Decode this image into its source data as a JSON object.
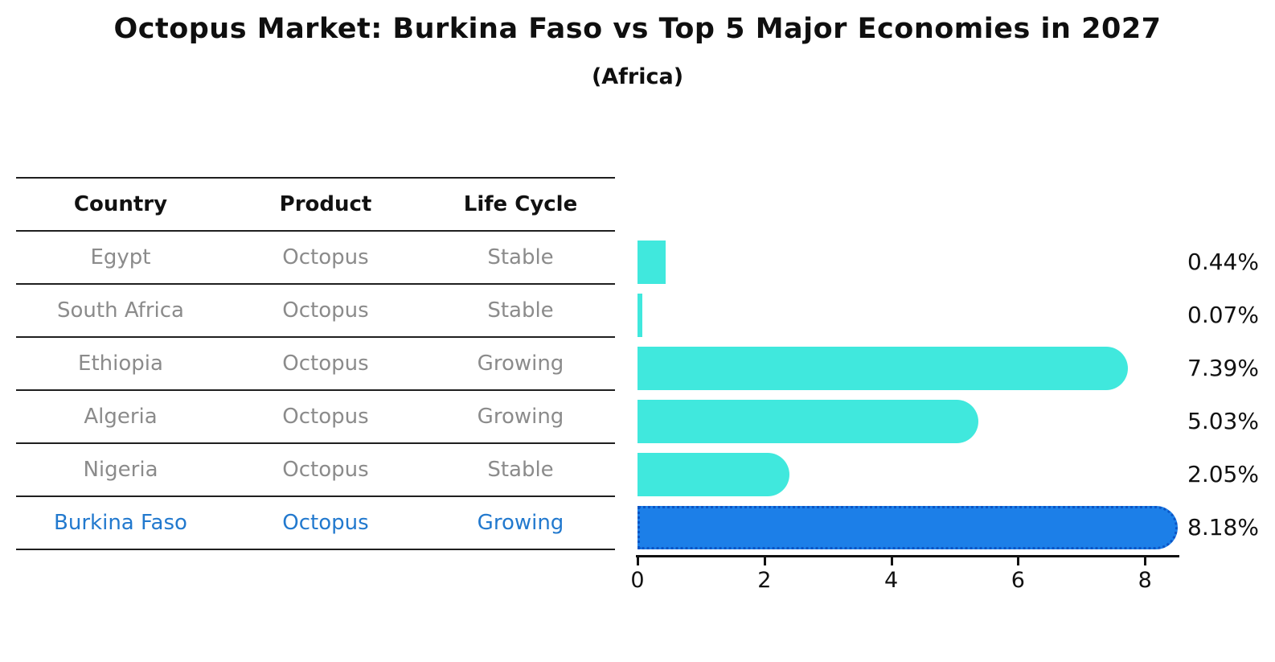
{
  "title": "Octopus Market: Burkina Faso vs Top 5 Major Economies in 2027",
  "subtitle": "(Africa)",
  "table": {
    "headers": [
      "Country",
      "Product",
      "Life Cycle"
    ],
    "rows": [
      {
        "country": "Egypt",
        "product": "Octopus",
        "life_cycle": "Stable",
        "highlight": false
      },
      {
        "country": "South Africa",
        "product": "Octopus",
        "life_cycle": "Stable",
        "highlight": false
      },
      {
        "country": "Ethiopia",
        "product": "Octopus",
        "life_cycle": "Growing",
        "highlight": false
      },
      {
        "country": "Algeria",
        "product": "Octopus",
        "life_cycle": "Growing",
        "highlight": false
      },
      {
        "country": "Nigeria",
        "product": "Octopus",
        "life_cycle": "Stable",
        "highlight": false
      },
      {
        "country": "Burkina Faso",
        "product": "Octopus",
        "life_cycle": "Growing",
        "highlight": true
      }
    ]
  },
  "chart_data": {
    "type": "bar",
    "orientation": "horizontal",
    "title": "Octopus Market: Burkina Faso vs Top 5 Major Economies in 2027 (Africa)",
    "categories": [
      "Egypt",
      "South Africa",
      "Ethiopia",
      "Algeria",
      "Nigeria",
      "Burkina Faso"
    ],
    "values": [
      0.44,
      0.07,
      7.39,
      5.03,
      2.05,
      8.18
    ],
    "value_labels": [
      "0.44%",
      "0.07%",
      "7.39%",
      "5.03%",
      "2.05%",
      "8.18%"
    ],
    "highlight_index": 5,
    "xlabel": "",
    "ylabel": "",
    "xticks": [
      0,
      2,
      4,
      6,
      8
    ],
    "xlim": [
      0,
      8.5
    ],
    "grid": false,
    "legend": "none"
  },
  "colors": {
    "bar": "#40e8dd",
    "highlight_bar": "#1c7fe8",
    "highlight_bar_border": "#0c55c5",
    "highlight_text": "#2279ce",
    "table_text": "#8b8b8b",
    "axis": "#111111"
  }
}
